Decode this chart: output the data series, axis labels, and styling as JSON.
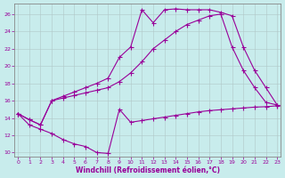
{
  "bg_color": "#c8ecec",
  "line_color": "#990099",
  "grid_color": "#b0c8c8",
  "xlabel": "Windchill (Refroidissement éolien,°C)",
  "xlim": [
    -0.3,
    23.3
  ],
  "ylim": [
    9.5,
    27.2
  ],
  "xticks": [
    0,
    1,
    2,
    3,
    4,
    5,
    6,
    7,
    8,
    9,
    10,
    11,
    12,
    13,
    14,
    15,
    16,
    17,
    18,
    19,
    20,
    21,
    22,
    23
  ],
  "yticks": [
    10,
    12,
    14,
    16,
    18,
    20,
    22,
    24,
    26
  ],
  "line1_x": [
    0,
    1,
    2,
    3,
    4,
    5,
    6,
    7,
    8,
    9,
    10,
    11,
    12,
    13,
    14,
    15,
    16,
    17,
    18,
    19,
    20,
    21,
    22,
    23
  ],
  "line1_y": [
    14.5,
    13.2,
    12.7,
    12.2,
    11.5,
    11.0,
    10.7,
    10.0,
    9.9,
    15.0,
    13.5,
    13.7,
    13.9,
    14.1,
    14.3,
    14.5,
    14.7,
    14.85,
    14.95,
    15.05,
    15.15,
    15.25,
    15.3,
    15.4
  ],
  "line2_x": [
    0,
    1,
    2,
    3,
    4,
    5,
    6,
    7,
    8,
    9,
    10,
    11,
    12,
    13,
    14,
    15,
    16,
    17,
    18,
    19,
    20,
    21,
    22,
    23
  ],
  "line2_y": [
    14.5,
    13.8,
    13.2,
    16.0,
    16.3,
    16.6,
    16.9,
    17.2,
    17.5,
    18.2,
    19.2,
    20.5,
    22.0,
    23.0,
    24.0,
    24.8,
    25.3,
    25.8,
    26.0,
    22.2,
    19.5,
    17.5,
    15.8,
    15.5
  ],
  "line3_x": [
    0,
    1,
    2,
    3,
    4,
    5,
    6,
    7,
    8,
    9,
    10,
    11,
    12,
    13,
    14,
    15,
    16,
    17,
    18,
    19,
    20,
    21,
    22,
    23
  ],
  "line3_y": [
    14.5,
    13.8,
    13.2,
    16.0,
    16.5,
    17.0,
    17.5,
    18.0,
    18.6,
    21.0,
    22.2,
    26.5,
    25.0,
    26.5,
    26.6,
    26.5,
    26.5,
    26.5,
    26.2,
    25.8,
    22.2,
    19.5,
    17.5,
    15.5
  ]
}
